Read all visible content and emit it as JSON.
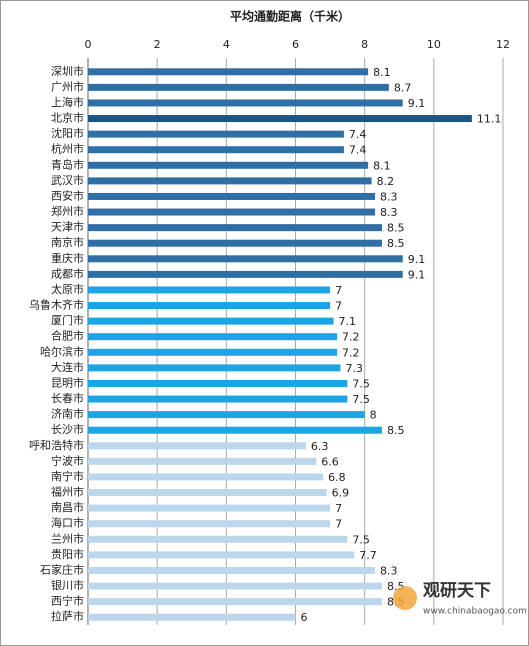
{
  "chart_data": {
    "type": "hbar",
    "title": "平均通勤距离（千米）",
    "categories": [
      "深圳市",
      "广州市",
      "上海市",
      "北京市",
      "沈阳市",
      "杭州市",
      "青岛市",
      "武汉市",
      "西安市",
      "郑州市",
      "天津市",
      "南京市",
      "重庆市",
      "成都市",
      "太原市",
      "乌鲁木齐市",
      "厦门市",
      "合肥市",
      "哈尔滨市",
      "大连市",
      "昆明市",
      "长春市",
      "济南市",
      "长沙市",
      "呼和浩特市",
      "宁波市",
      "南宁市",
      "福州市",
      "南昌市",
      "海口市",
      "兰州市",
      "贵阳市",
      "石家庄市",
      "银川市",
      "西宁市",
      "拉萨市"
    ],
    "values": [
      8.1,
      8.7,
      9.1,
      11.1,
      7.4,
      7.4,
      8.1,
      8.2,
      8.3,
      8.3,
      8.5,
      8.5,
      9.1,
      9.1,
      7,
      7,
      7.1,
      7.2,
      7.2,
      7.3,
      7.5,
      7.5,
      8,
      8.5,
      6.3,
      6.6,
      6.8,
      6.9,
      7,
      7,
      7.5,
      7.7,
      8.3,
      8.5,
      8.5,
      6
    ],
    "colors": [
      "#2f6fa6",
      "#2f6fa6",
      "#2f6fa6",
      "#1b5584",
      "#2f6fa6",
      "#2f6fa6",
      "#2f6fa6",
      "#2f6fa6",
      "#2f6fa6",
      "#2f6fa6",
      "#2f6fa6",
      "#2f6fa6",
      "#2f6fa6",
      "#2f6fa6",
      "#1ba5e3",
      "#1ba5e3",
      "#1ba5e3",
      "#1ba5e3",
      "#1ba5e3",
      "#1ba5e3",
      "#1ba5e3",
      "#1ba5e3",
      "#1ba5e3",
      "#1ba5e3",
      "#bcd6ec",
      "#bcd6ec",
      "#bcd6ec",
      "#bcd6ec",
      "#bcd6ec",
      "#bcd6ec",
      "#bcd6ec",
      "#bcd6ec",
      "#bcd6ec",
      "#bcd6ec",
      "#bcd6ec",
      "#bcd6ec"
    ],
    "xlim": [
      0,
      12
    ],
    "xticks": [
      0,
      2,
      4,
      6,
      8,
      10,
      12
    ],
    "grid": true
  },
  "watermark": {
    "brand": "观研天下",
    "url": "www.chinabaogao.com"
  }
}
